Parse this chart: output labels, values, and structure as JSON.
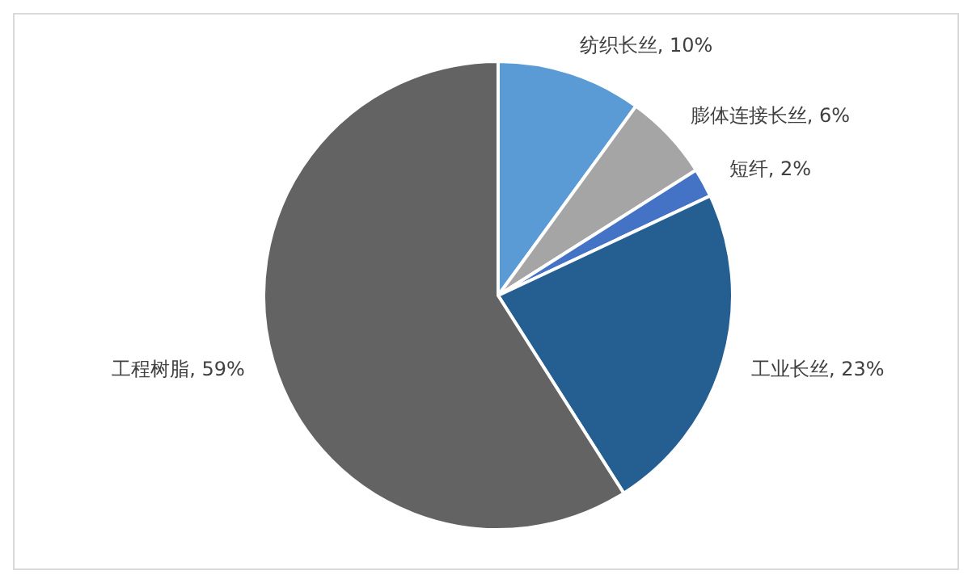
{
  "chart_data": {
    "type": "pie",
    "categories": [
      "纺织长丝",
      "膨体连接长丝",
      "短纤",
      "工业长丝",
      "工程树脂"
    ],
    "values": [
      10,
      6,
      2,
      23,
      59
    ],
    "value_labels": [
      "10%",
      "6%",
      "2%",
      "23%",
      "59%"
    ],
    "colors": [
      "#5b9bd5",
      "#a5a5a5",
      "#4472c4",
      "#255e91",
      "#636363"
    ]
  }
}
